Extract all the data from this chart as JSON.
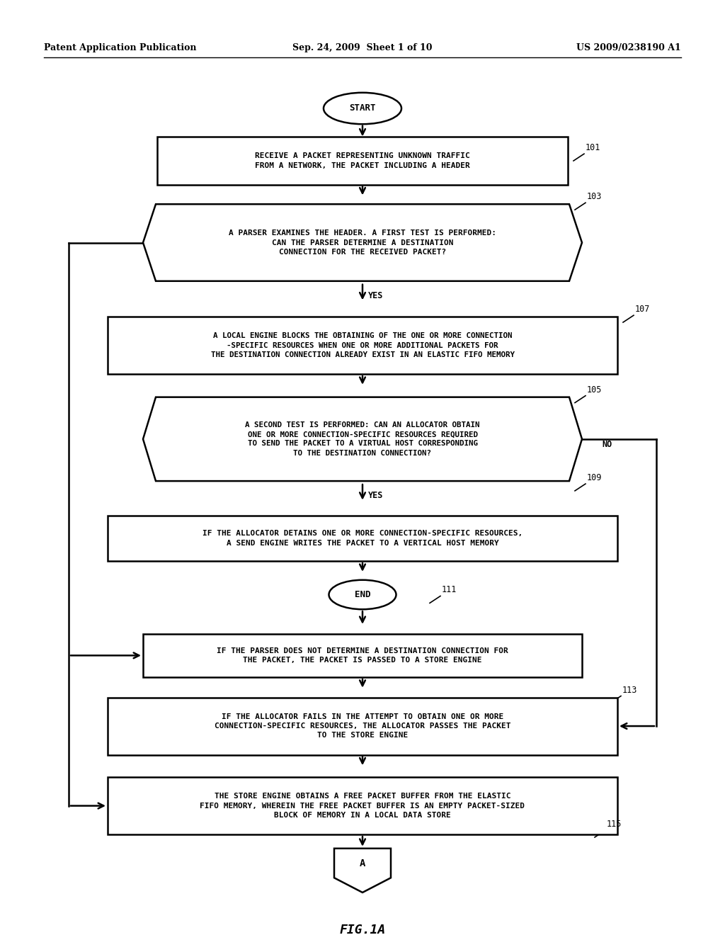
{
  "bg_color": "#ffffff",
  "header_left": "Patent Application Publication",
  "header_center": "Sep. 24, 2009  Sheet 1 of 10",
  "header_right": "US 2009/0238190 A1",
  "footer_label": "FIG.1A",
  "box101_text": "RECEIVE A PACKET REPRESENTING UNKNOWN TRAFFIC\nFROM A NETWORK, THE PACKET INCLUDING A HEADER",
  "diamond103_text": "A PARSER EXAMINES THE HEADER. A FIRST TEST IS PERFORMED:\nCAN THE PARSER DETERMINE A DESTINATION\nCONNECTION FOR THE RECEIVED PACKET?",
  "box107_text": "A LOCAL ENGINE BLOCKS THE OBTAINING OF THE ONE OR MORE CONNECTION\n-SPECIFIC RESOURCES WHEN ONE OR MORE ADDITIONAL PACKETS FOR\nTHE DESTINATION CONNECTION ALREADY EXIST IN AN ELASTIC FIFO MEMORY",
  "diamond105_text": "A SECOND TEST IS PERFORMED: CAN AN ALLOCATOR OBTAIN\nONE OR MORE CONNECTION-SPECIFIC RESOURCES REQUIRED\nTO SEND THE PACKET TO A VIRTUAL HOST CORRESPONDING\nTO THE DESTINATION CONNECTION?",
  "box109_text": "IF THE ALLOCATOR DETAINS ONE OR MORE CONNECTION-SPECIFIC RESOURCES,\nA SEND ENGINE WRITES THE PACKET TO A VERTICAL HOST MEMORY",
  "box111_text": "IF THE PARSER DOES NOT DETERMINE A DESTINATION CONNECTION FOR\nTHE PACKET, THE PACKET IS PASSED TO A STORE ENGINE",
  "box113_text": "IF THE ALLOCATOR FAILS IN THE ATTEMPT TO OBTAIN ONE OR MORE\nCONNECTION-SPECIFIC RESOURCES, THE ALLOCATOR PASSES THE PACKET\nTO THE STORE ENGINE",
  "box115_text": "THE STORE ENGINE OBTAINS A FREE PACKET BUFFER FROM THE ELASTIC\nFIFO MEMORY, WHEREIN THE FREE PACKET BUFFER IS AN EMPTY PACKET-SIZED\nBLOCK OF MEMORY IN A LOCAL DATA STORE"
}
